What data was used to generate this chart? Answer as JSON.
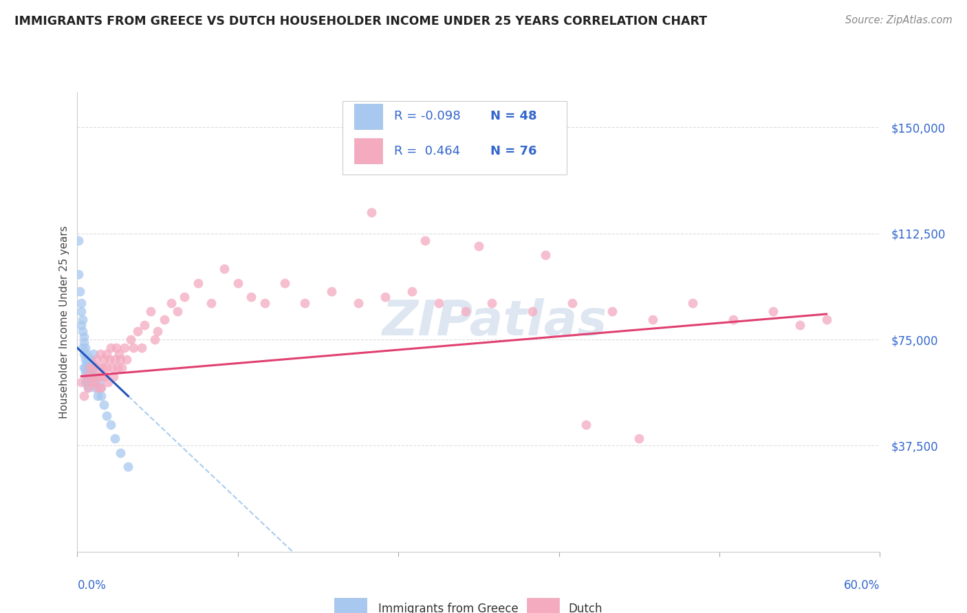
{
  "title": "IMMIGRANTS FROM GREECE VS DUTCH HOUSEHOLDER INCOME UNDER 25 YEARS CORRELATION CHART",
  "source": "Source: ZipAtlas.com",
  "ylabel": "Householder Income Under 25 years",
  "yticks": [
    37500,
    75000,
    112500,
    150000
  ],
  "ytick_labels": [
    "$37,500",
    "$75,000",
    "$112,500",
    "$150,000"
  ],
  "xlim": [
    0.0,
    0.6
  ],
  "ylim": [
    0,
    162500
  ],
  "blue_color": "#A8C8F0",
  "pink_color": "#F4AABF",
  "blue_line_color": "#2255BB",
  "pink_line_color": "#E04070",
  "blue_dashed_color": "#AACCEE",
  "watermark_color": "#C8D8E8",
  "title_color": "#222222",
  "source_color": "#888888",
  "label_color": "#3366CC",
  "blue_scatter_x": [
    0.001,
    0.001,
    0.002,
    0.003,
    0.003,
    0.003,
    0.004,
    0.004,
    0.004,
    0.005,
    0.005,
    0.005,
    0.005,
    0.006,
    0.006,
    0.006,
    0.006,
    0.006,
    0.007,
    0.007,
    0.007,
    0.007,
    0.008,
    0.008,
    0.008,
    0.008,
    0.009,
    0.009,
    0.009,
    0.01,
    0.01,
    0.01,
    0.011,
    0.011,
    0.012,
    0.012,
    0.013,
    0.014,
    0.015,
    0.016,
    0.017,
    0.018,
    0.02,
    0.022,
    0.025,
    0.028,
    0.032,
    0.038
  ],
  "blue_scatter_y": [
    110000,
    98000,
    92000,
    88000,
    85000,
    80000,
    82000,
    78000,
    72000,
    76000,
    74000,
    70000,
    65000,
    72000,
    68000,
    65000,
    63000,
    60000,
    70000,
    67000,
    64000,
    60000,
    68000,
    65000,
    62000,
    58000,
    66000,
    63000,
    60000,
    68000,
    65000,
    62000,
    64000,
    60000,
    70000,
    66000,
    58000,
    62000,
    55000,
    60000,
    58000,
    55000,
    52000,
    48000,
    45000,
    40000,
    35000,
    30000
  ],
  "pink_scatter_x": [
    0.003,
    0.005,
    0.007,
    0.008,
    0.009,
    0.01,
    0.011,
    0.012,
    0.013,
    0.014,
    0.015,
    0.015,
    0.016,
    0.017,
    0.018,
    0.018,
    0.019,
    0.02,
    0.021,
    0.022,
    0.022,
    0.023,
    0.024,
    0.025,
    0.026,
    0.027,
    0.028,
    0.029,
    0.03,
    0.031,
    0.032,
    0.033,
    0.035,
    0.037,
    0.04,
    0.042,
    0.045,
    0.048,
    0.05,
    0.055,
    0.058,
    0.06,
    0.065,
    0.07,
    0.075,
    0.08,
    0.09,
    0.1,
    0.11,
    0.12,
    0.13,
    0.14,
    0.155,
    0.17,
    0.19,
    0.21,
    0.23,
    0.25,
    0.27,
    0.29,
    0.31,
    0.34,
    0.37,
    0.4,
    0.43,
    0.46,
    0.49,
    0.52,
    0.54,
    0.56,
    0.22,
    0.26,
    0.3,
    0.35,
    0.38,
    0.42
  ],
  "pink_scatter_y": [
    60000,
    55000,
    62000,
    58000,
    65000,
    60000,
    62000,
    65000,
    60000,
    68000,
    62000,
    58000,
    65000,
    70000,
    62000,
    58000,
    65000,
    68000,
    62000,
    70000,
    65000,
    60000,
    68000,
    72000,
    65000,
    62000,
    68000,
    72000,
    65000,
    70000,
    68000,
    65000,
    72000,
    68000,
    75000,
    72000,
    78000,
    72000,
    80000,
    85000,
    75000,
    78000,
    82000,
    88000,
    85000,
    90000,
    95000,
    88000,
    100000,
    95000,
    90000,
    88000,
    95000,
    88000,
    92000,
    88000,
    90000,
    92000,
    88000,
    85000,
    88000,
    85000,
    88000,
    85000,
    82000,
    88000,
    82000,
    85000,
    80000,
    82000,
    120000,
    110000,
    108000,
    105000,
    45000,
    40000
  ]
}
